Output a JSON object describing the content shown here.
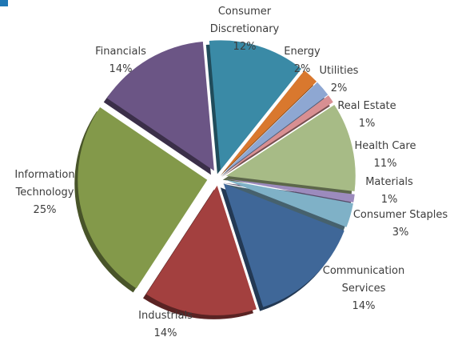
{
  "chart_data": {
    "type": "pie",
    "title": "",
    "legend": "none",
    "exploded": true,
    "slices": [
      {
        "label": [
          "Consumer",
          "Discretionary"
        ],
        "value": 12,
        "display": "12%",
        "color": "#3a8aa6"
      },
      {
        "label": [
          "Energy"
        ],
        "value": 2,
        "display": "2%",
        "color": "#d9782e"
      },
      {
        "label": [
          "Utilities"
        ],
        "value": 2,
        "display": "2%",
        "color": "#8ea7d2"
      },
      {
        "label": [
          "Real Estate"
        ],
        "value": 1,
        "display": "1%",
        "color": "#d88f92"
      },
      {
        "label": [
          "Health Care"
        ],
        "value": 11,
        "display": "11%",
        "color": "#a7bb86"
      },
      {
        "label": [
          "Materials"
        ],
        "value": 1,
        "display": "1%",
        "color": "#9c8bbd"
      },
      {
        "label": [
          "Consumer Staples"
        ],
        "value": 3,
        "display": "3%",
        "color": "#7fb1c7"
      },
      {
        "label": [
          "Communication",
          "Services"
        ],
        "value": 14,
        "display": "14%",
        "color": "#3f6798"
      },
      {
        "label": [
          "Industrials"
        ],
        "value": 14,
        "display": "14%",
        "color": "#a3403f"
      },
      {
        "label": [
          "Information",
          "Technology"
        ],
        "value": 25,
        "display": "25%",
        "color": "#83994a"
      },
      {
        "label": [
          "Financials"
        ],
        "value": 14,
        "display": "14%",
        "color": "#6b5585"
      }
    ]
  }
}
